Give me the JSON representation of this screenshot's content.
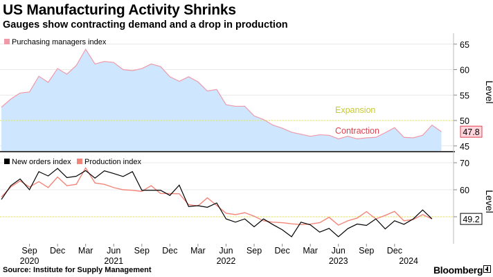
{
  "header": {
    "title": "US Manufacturing Activity Shrinks",
    "subtitle": "Gauges show contracting demand and a drop in production"
  },
  "footer": {
    "source": "Source: Institute for Supply Management",
    "brand": "Bloomberg"
  },
  "colors": {
    "pmi_fill": "#cfe6ff",
    "pmi_line": "#f09aa9",
    "new_orders": "#000000",
    "production": "#f2857a",
    "threshold": "#e8e83a",
    "expansion_text": "#c8c83a",
    "contraction_text": "#e0414f",
    "pmi_badge": "#ffd6dc",
    "grid": "#e0e0e0"
  },
  "chart_data": [
    {
      "type": "area",
      "ylabel": "Level",
      "ylim": [
        44,
        67
      ],
      "yticks": [
        45,
        50,
        55,
        60,
        65
      ],
      "threshold": 50,
      "annotations": {
        "above": "Expansion",
        "below": "Contraction"
      },
      "last_value_label": "47.8",
      "legend_position": "top-left",
      "x_start": "2020-06",
      "series": [
        {
          "name": "Purchasing managers index",
          "values": [
            52.6,
            54.2,
            55.4,
            55.6,
            58.7,
            57.5,
            60.2,
            59.1,
            60.8,
            64.0,
            61.1,
            61.6,
            61.4,
            60.0,
            59.8,
            60.2,
            61.1,
            60.6,
            58.6,
            57.7,
            58.6,
            57.6,
            55.8,
            56.1,
            53.1,
            52.8,
            52.8,
            50.9,
            50.2,
            49.1,
            48.5,
            47.7,
            47.3,
            46.9,
            47.2,
            47.1,
            46.4,
            46.9,
            46.4,
            46.6,
            46.7,
            47.6,
            48.6,
            46.7,
            46.6,
            47.1,
            49.1,
            47.8
          ]
        }
      ]
    },
    {
      "type": "line",
      "ylabel": "Level",
      "ylim": [
        42,
        72
      ],
      "yticks": [
        50,
        60,
        70
      ],
      "threshold": 50,
      "last_value_label": "49.2",
      "legend_position": "top-left",
      "x_start": "2020-06",
      "series": [
        {
          "name": "New orders index",
          "values": [
            56.4,
            61.5,
            64.0,
            60.0,
            66.7,
            65.1,
            67.9,
            64.5,
            65.0,
            67.1,
            64.3,
            67.0,
            66.0,
            64.9,
            66.7,
            59.8,
            59.8,
            59.8,
            57.9,
            61.7,
            53.8,
            54.1,
            53.5,
            55.1,
            49.2,
            48.0,
            49.2,
            46.3,
            49.2,
            47.1,
            45.2,
            42.6,
            48.0,
            47.0,
            44.3,
            45.7,
            42.6,
            45.6,
            47.3,
            46.8,
            49.2,
            45.5,
            48.5,
            47.2,
            49.2,
            52.5,
            49.2
          ]
        },
        {
          "name": "Production index",
          "values": [
            57.3,
            61.0,
            63.3,
            61.0,
            63.0,
            60.8,
            64.7,
            61.5,
            62.0,
            68.1,
            62.5,
            62.0,
            60.8,
            60.0,
            59.8,
            59.4,
            61.5,
            58.6,
            58.6,
            58.5,
            54.5,
            54.0,
            57.0,
            54.2,
            51.3,
            50.8,
            51.5,
            50.2,
            48.5,
            48.0,
            47.8,
            47.4,
            47.1,
            47.3,
            47.8,
            49.8,
            46.9,
            48.5,
            49.5,
            51.9,
            49.2,
            50.5,
            52.0,
            48.5,
            49.0,
            50.8,
            49.2
          ]
        }
      ]
    }
  ],
  "x_axis": {
    "months": [
      {
        "label": "Sep",
        "index": 3
      },
      {
        "label": "Dec",
        "index": 6
      },
      {
        "label": "Mar",
        "index": 9
      },
      {
        "label": "Jun",
        "index": 12
      },
      {
        "label": "Sep",
        "index": 15
      },
      {
        "label": "Dec",
        "index": 18
      },
      {
        "label": "Mar",
        "index": 21
      },
      {
        "label": "Jun",
        "index": 24
      },
      {
        "label": "Sep",
        "index": 27
      },
      {
        "label": "Dec",
        "index": 30
      },
      {
        "label": "Mar",
        "index": 33
      },
      {
        "label": "Jun",
        "index": 36
      },
      {
        "label": "Sep",
        "index": 39
      },
      {
        "label": "Dec",
        "index": 42
      }
    ],
    "years": [
      {
        "label": "2020",
        "index": 3
      },
      {
        "label": "2021",
        "index": 12
      },
      {
        "label": "2022",
        "index": 24
      },
      {
        "label": "2023",
        "index": 36
      },
      {
        "label": "2024",
        "index": 43.5
      }
    ]
  }
}
